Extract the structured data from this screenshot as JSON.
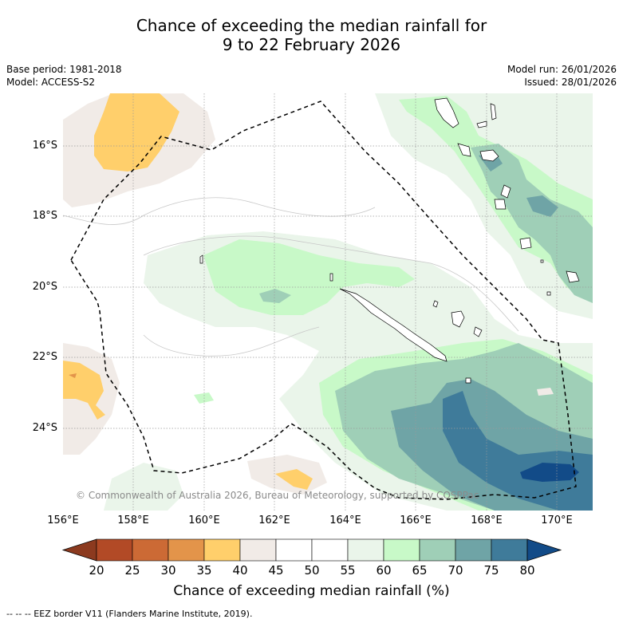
{
  "title_line1": "Chance of exceeding the median rainfall for",
  "title_line2": "9 to 22 February 2026",
  "meta": {
    "base_period": "Base period: 1981-2018",
    "model": "Model: ACCESS-S2",
    "model_run": "Model run: 26/01/2026",
    "issued": "Issued: 28/01/2026"
  },
  "axes": {
    "lat_labels": [
      "16°S",
      "18°S",
      "20°S",
      "22°S",
      "24°S"
    ],
    "lon_labels": [
      "156°E",
      "158°E",
      "160°E",
      "162°E",
      "164°E",
      "166°E",
      "168°E",
      "170°E"
    ]
  },
  "copyright": "© Commonwealth of Australia 2026, Bureau of Meteorology, supported by COSPPac",
  "colorbar": {
    "ticks": [
      "20",
      "25",
      "30",
      "35",
      "40",
      "45",
      "50",
      "55",
      "60",
      "65",
      "70",
      "75",
      "80"
    ],
    "colors": [
      "#8c3a1f",
      "#b24a26",
      "#cc6a35",
      "#e3944a",
      "#ffcf6b",
      "#f1ebe7",
      "#ffffff",
      "#ffffff",
      "#eaf5ea",
      "#c8f9c8",
      "#9fcfb7",
      "#6fa4a6",
      "#3f7b9a",
      "#124b88"
    ],
    "title": "Chance of exceeding median rainfall (%)"
  },
  "footnote": "--  --  -- EEZ border V11 (Flanders Marine Institute, 2019).",
  "colors": {
    "land": "#ffffff",
    "coast": "#000000",
    "grid": "#9a9a9a"
  }
}
